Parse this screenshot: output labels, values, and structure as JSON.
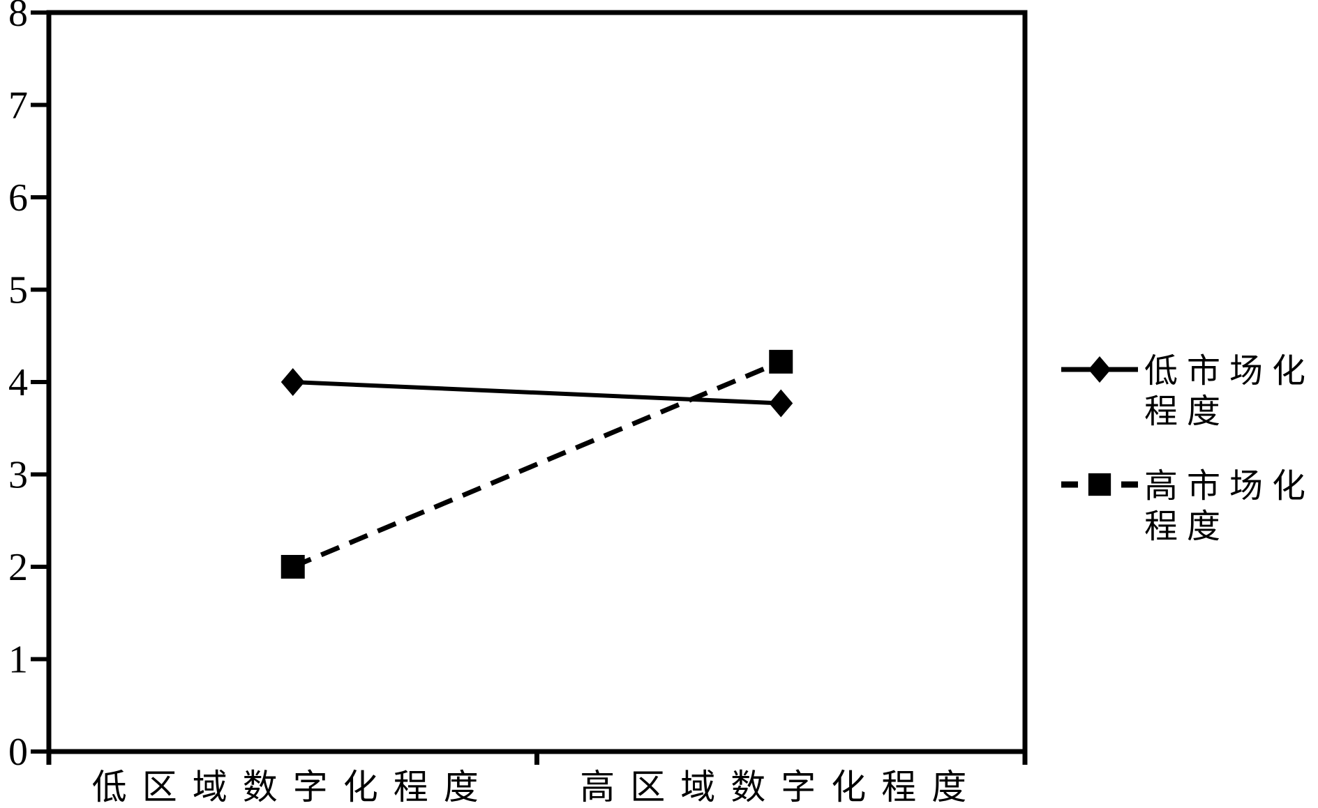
{
  "chart_data": {
    "type": "line",
    "title": "",
    "categories": [
      "低区域数字化程度",
      "高区域数字化程度"
    ],
    "series": [
      {
        "name": "低市场化程度",
        "name_lines": [
          "低市场化",
          "程度"
        ],
        "values": [
          4.0,
          3.77
        ],
        "line_style": "solid",
        "marker": "diamond"
      },
      {
        "name": "高市场化程度",
        "name_lines": [
          "高市场化",
          "程度"
        ],
        "values": [
          2.0,
          4.22
        ],
        "line_style": "dashed",
        "marker": "square"
      }
    ],
    "xlabel": "",
    "ylabel": "",
    "ylim": [
      0,
      8
    ],
    "yticks": [
      "8",
      "7",
      "6",
      "5",
      "4",
      "3",
      "2",
      "1",
      "0"
    ],
    "grid": false,
    "legend_position": "right",
    "colors": {
      "foreground": "#000000",
      "background": "#ffffff"
    }
  }
}
